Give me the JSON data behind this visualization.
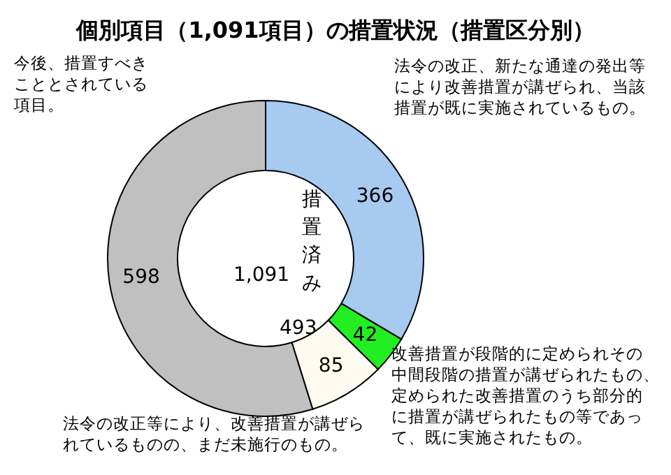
{
  "chart_data": {
    "type": "donut",
    "title": "個別項目（1,091項目）の措置状況（措置区分別）",
    "categories": [
      null,
      null,
      null,
      null
    ],
    "values": [
      366,
      42,
      85,
      598
    ],
    "colors": [
      "#a6caf0",
      "#22ee22",
      "#fffbf0",
      "#c0c0c0"
    ],
    "data_labels": true,
    "annotations": [
      "今後、措置すべきこととされている項目。",
      "法令の改正、新たな通達の発出等により改善措置が講ぜられ、当該措置が既に実施されているもの。",
      "改善措置が段階的に定められその中間段階の措置が講ぜられたもの、定められた改善措置のうち部分的に措置が講ぜられたもの等であって、既に実施されたもの。",
      "法令の改正等により、改善措置が講ぜられているものの、まだ未施行のもの。",
      "1,091",
      "措置済み",
      "493"
    ]
  }
}
